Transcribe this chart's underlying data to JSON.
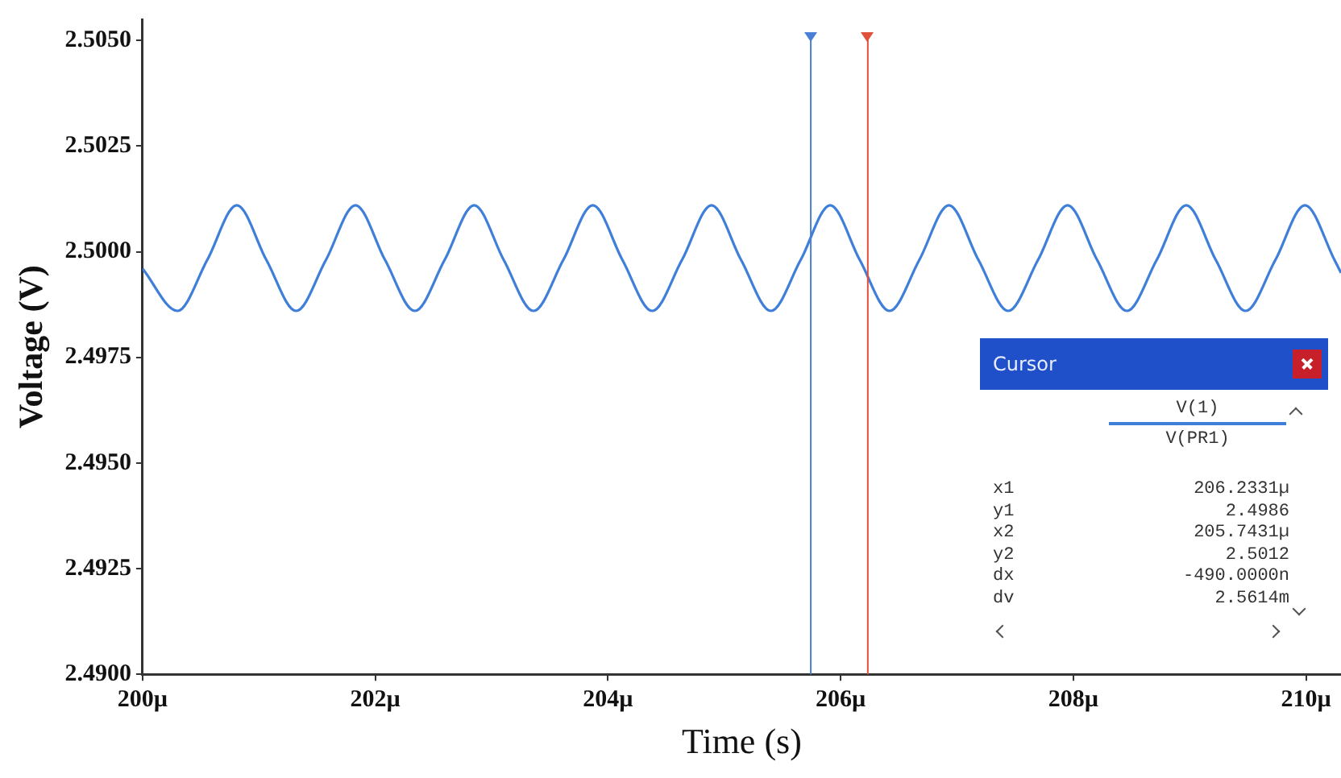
{
  "chart_data": {
    "type": "line",
    "xlabel": "Time (s)",
    "ylabel": "Voltage (V)",
    "xlim": [
      200,
      210.3
    ],
    "xticks": [
      {
        "value": 200,
        "label": "200µ"
      },
      {
        "value": 202,
        "label": "202µ"
      },
      {
        "value": 204,
        "label": "204µ"
      },
      {
        "value": 206,
        "label": "206µ"
      },
      {
        "value": 208,
        "label": "208µ"
      },
      {
        "value": 210,
        "label": "210µ"
      }
    ],
    "ylim": [
      2.49,
      2.5055
    ],
    "yticks": [
      {
        "value": 2.49,
        "label": "2.4900"
      },
      {
        "value": 2.4925,
        "label": "2.4925"
      },
      {
        "value": 2.495,
        "label": "2.4950"
      },
      {
        "value": 2.4975,
        "label": "2.4975"
      },
      {
        "value": 2.5,
        "label": "2.5000"
      },
      {
        "value": 2.5025,
        "label": "2.5025"
      },
      {
        "value": 2.505,
        "label": "2.5050"
      }
    ],
    "x": [
      200,
      200.3,
      200.555,
      200.81,
      201.065,
      201.32,
      201.575,
      201.83,
      202.085,
      202.34,
      202.595,
      202.85,
      203.105,
      203.36,
      203.615,
      203.87,
      204.125,
      204.38,
      204.635,
      204.89,
      205.145,
      205.4,
      205.655,
      205.91,
      206.165,
      206.42,
      206.675,
      206.93,
      207.185,
      207.44,
      207.695,
      207.95,
      208.205,
      208.46,
      208.715,
      208.97,
      209.225,
      209.48,
      209.735,
      209.99,
      210.245,
      210.3
    ],
    "series": [
      {
        "color": "#3f7fd9",
        "values": [
          2.4996,
          2.4986,
          2.4998,
          2.5011,
          2.4998,
          2.4986,
          2.4998,
          2.5011,
          2.4998,
          2.4986,
          2.4998,
          2.5011,
          2.4998,
          2.4986,
          2.4998,
          2.5011,
          2.4998,
          2.4986,
          2.4998,
          2.5011,
          2.4998,
          2.4986,
          2.4998,
          2.5011,
          2.4998,
          2.4986,
          2.4998,
          2.5011,
          2.4998,
          2.4986,
          2.4998,
          2.5011,
          2.4998,
          2.4986,
          2.4998,
          2.5011,
          2.4998,
          2.4986,
          2.4998,
          2.5011,
          2.4998,
          2.4995
        ]
      }
    ],
    "ref_lines": [
      {
        "axis": "x",
        "value": 205.7431,
        "color": "#4a7fd6"
      },
      {
        "axis": "x",
        "value": 206.2331,
        "color": "#e0503a"
      }
    ],
    "annotations": [
      "Cursor",
      "V(1)",
      "V(PR1)",
      "x1",
      "206.2331µ",
      "y1",
      "2.4986",
      "x2",
      "205.7431µ",
      "y2",
      "2.5012",
      "dx",
      "-490.0000n",
      "dv",
      "2.5614m"
    ],
    "grid": false,
    "legend": false,
    "marker": "none",
    "line_style": "solid"
  }
}
